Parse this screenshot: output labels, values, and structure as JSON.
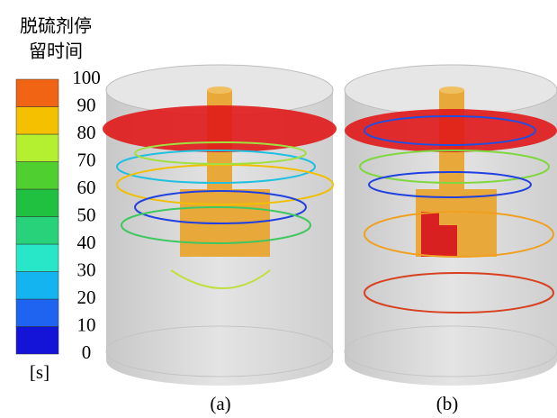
{
  "legend": {
    "title": [
      "脱硫剂停",
      "留时间"
    ],
    "ticks": [
      0,
      10,
      20,
      30,
      40,
      50,
      60,
      70,
      80,
      90,
      100
    ],
    "colors": [
      "#1414d8",
      "#1e64f0",
      "#14b4f0",
      "#28e6c8",
      "#28d27a",
      "#20c040",
      "#50d030",
      "#b4f030",
      "#f5c000",
      "#f06414"
    ],
    "unit": "[s]"
  },
  "panels": [
    {
      "label": "(a)"
    },
    {
      "label": "(b)"
    }
  ]
}
